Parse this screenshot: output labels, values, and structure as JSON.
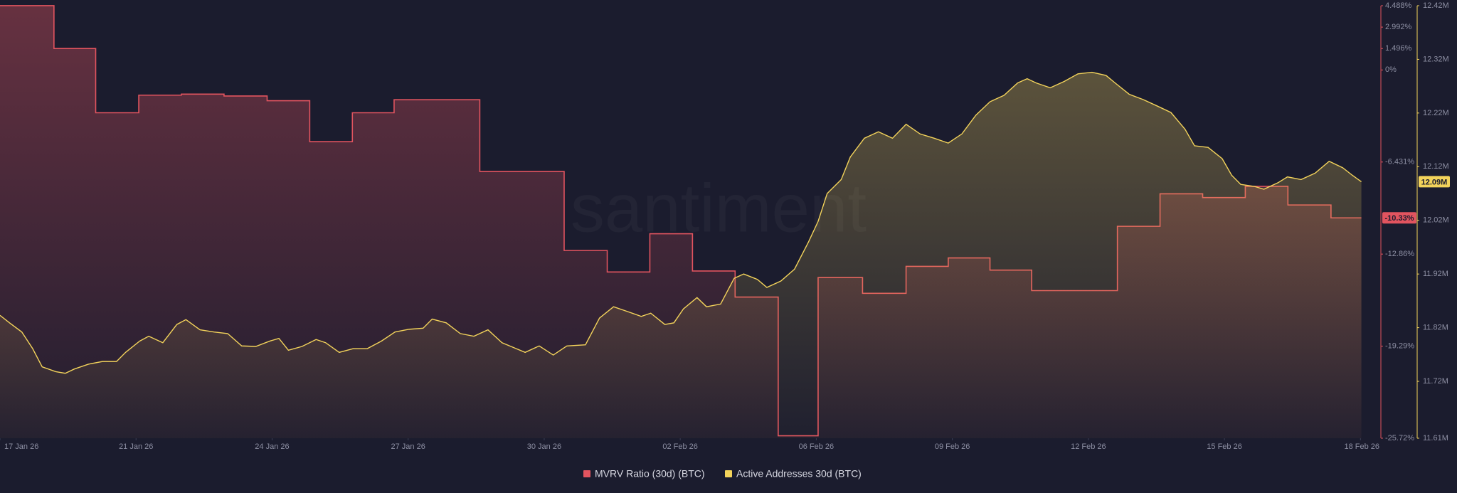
{
  "chart_data": {
    "type": "line",
    "watermark": "santiment",
    "xlim": [
      1,
      31.45
    ],
    "xticks": [
      {
        "value": 1,
        "label": "17 Jan 26"
      },
      {
        "value": 4,
        "label": "21 Jan 26"
      },
      {
        "value": 7,
        "label": "24 Jan 26"
      },
      {
        "value": 10,
        "label": "27 Jan 26"
      },
      {
        "value": 13,
        "label": "30 Jan 26"
      },
      {
        "value": 16,
        "label": "02 Feb 26"
      },
      {
        "value": 19,
        "label": "06 Feb 26"
      },
      {
        "value": 22,
        "label": "09 Feb 26"
      },
      {
        "value": 25,
        "label": "12 Feb 26"
      },
      {
        "value": 28,
        "label": "15 Feb 26"
      },
      {
        "value": 31,
        "label": "18 Feb 26"
      }
    ],
    "ylim": [
      -25.72,
      4.488
    ],
    "yticks": [
      {
        "value": 4.488,
        "label": "4.488%"
      },
      {
        "value": 2.992,
        "label": "2.992%"
      },
      {
        "value": 1.496,
        "label": "1.496%"
      },
      {
        "value": 0,
        "label": "0%"
      },
      {
        "value": -6.431,
        "label": "-6.431%"
      },
      {
        "value": -12.86,
        "label": "-12.86%"
      },
      {
        "value": -19.29,
        "label": "-19.29%"
      },
      {
        "value": -25.72,
        "label": "-25.72%"
      }
    ],
    "y2lim": [
      11.614,
      12.42
    ],
    "y2ticks": [
      {
        "value": 12.42,
        "label": "12.42M"
      },
      {
        "value": 12.32,
        "label": "12.32M"
      },
      {
        "value": 12.22,
        "label": "12.22M"
      },
      {
        "value": 12.12,
        "label": "12.12M"
      },
      {
        "value": 12.02,
        "label": "12.02M"
      },
      {
        "value": 11.92,
        "label": "11.92M"
      },
      {
        "value": 11.82,
        "label": "11.82M"
      },
      {
        "value": 11.72,
        "label": "11.72M"
      },
      {
        "value": 11.614,
        "label": "11.61M"
      }
    ],
    "series": [
      {
        "name": "MVRV Ratio (30d) (BTC)",
        "color": "#e2545f",
        "axis": "y",
        "step": true,
        "current_label": "-10.33%",
        "x": [
          1.0,
          2.19,
          3.11,
          4.06,
          5.0,
          5.94,
          6.89,
          7.83,
          8.77,
          9.69,
          11.58,
          13.44,
          14.39,
          15.33,
          16.27,
          17.21,
          18.16,
          19.04,
          20.02,
          20.98,
          21.91,
          22.83,
          23.75,
          25.64,
          26.58,
          27.52,
          28.46,
          29.4,
          30.35,
          31.02
        ],
        "values": [
          4.49,
          1.5,
          -2.99,
          -1.76,
          -1.69,
          -1.82,
          -2.15,
          -5.01,
          -2.99,
          -2.08,
          -7.09,
          -12.61,
          -14.11,
          -11.44,
          -14.04,
          -15.86,
          -25.55,
          -14.5,
          -15.6,
          -13.72,
          -13.13,
          -13.98,
          -15.41,
          -10.92,
          -8.65,
          -8.91,
          -8.13,
          -9.43,
          -10.33,
          -10.33
        ]
      },
      {
        "name": "Active Addresses 30d (BTC)",
        "color": "#f3d35b",
        "axis": "y2",
        "step": false,
        "current_label": "12.09M",
        "x": [
          1.0,
          1.21,
          1.48,
          1.72,
          1.93,
          2.23,
          2.44,
          2.64,
          2.95,
          3.26,
          3.57,
          3.77,
          4.08,
          4.28,
          4.59,
          4.9,
          5.1,
          5.41,
          5.72,
          6.02,
          6.33,
          6.64,
          6.95,
          7.15,
          7.36,
          7.66,
          7.97,
          8.18,
          8.48,
          8.79,
          9.1,
          9.41,
          9.71,
          10.02,
          10.33,
          10.53,
          10.84,
          11.15,
          11.45,
          11.76,
          12.07,
          12.38,
          12.58,
          12.89,
          13.2,
          13.5,
          13.91,
          14.22,
          14.53,
          14.84,
          15.14,
          15.35,
          15.66,
          15.86,
          16.07,
          16.37,
          16.58,
          16.89,
          17.19,
          17.4,
          17.7,
          17.91,
          18.22,
          18.52,
          18.83,
          19.04,
          19.24,
          19.55,
          19.75,
          20.06,
          20.37,
          20.68,
          20.98,
          21.29,
          21.6,
          21.91,
          22.21,
          22.52,
          22.83,
          23.14,
          23.44,
          23.65,
          23.85,
          24.16,
          24.47,
          24.77,
          25.08,
          25.39,
          25.59,
          25.9,
          26.21,
          26.52,
          26.82,
          27.13,
          27.34,
          27.64,
          27.95,
          28.16,
          28.36,
          28.67,
          28.87,
          29.18,
          29.39,
          29.69,
          30.0,
          30.31,
          30.61,
          30.82,
          31.02
        ],
        "values": [
          11.843,
          11.829,
          11.812,
          11.781,
          11.747,
          11.738,
          11.735,
          11.743,
          11.752,
          11.757,
          11.757,
          11.774,
          11.795,
          11.804,
          11.792,
          11.826,
          11.835,
          11.816,
          11.812,
          11.809,
          11.786,
          11.785,
          11.795,
          11.8,
          11.778,
          11.785,
          11.798,
          11.792,
          11.774,
          11.781,
          11.781,
          11.795,
          11.812,
          11.817,
          11.819,
          11.836,
          11.829,
          11.809,
          11.804,
          11.816,
          11.792,
          11.781,
          11.774,
          11.786,
          11.769,
          11.786,
          11.788,
          11.838,
          11.859,
          11.85,
          11.841,
          11.847,
          11.826,
          11.829,
          11.855,
          11.876,
          11.859,
          11.864,
          11.912,
          11.92,
          11.91,
          11.895,
          11.907,
          11.929,
          11.98,
          12.018,
          12.07,
          12.096,
          12.138,
          12.173,
          12.185,
          12.173,
          12.199,
          12.181,
          12.173,
          12.164,
          12.181,
          12.216,
          12.241,
          12.253,
          12.276,
          12.284,
          12.276,
          12.267,
          12.279,
          12.293,
          12.296,
          12.29,
          12.276,
          12.255,
          12.245,
          12.233,
          12.221,
          12.19,
          12.159,
          12.156,
          12.135,
          12.104,
          12.087,
          12.083,
          12.078,
          12.09,
          12.101,
          12.096,
          12.108,
          12.13,
          12.118,
          12.104,
          12.092
        ]
      }
    ]
  }
}
